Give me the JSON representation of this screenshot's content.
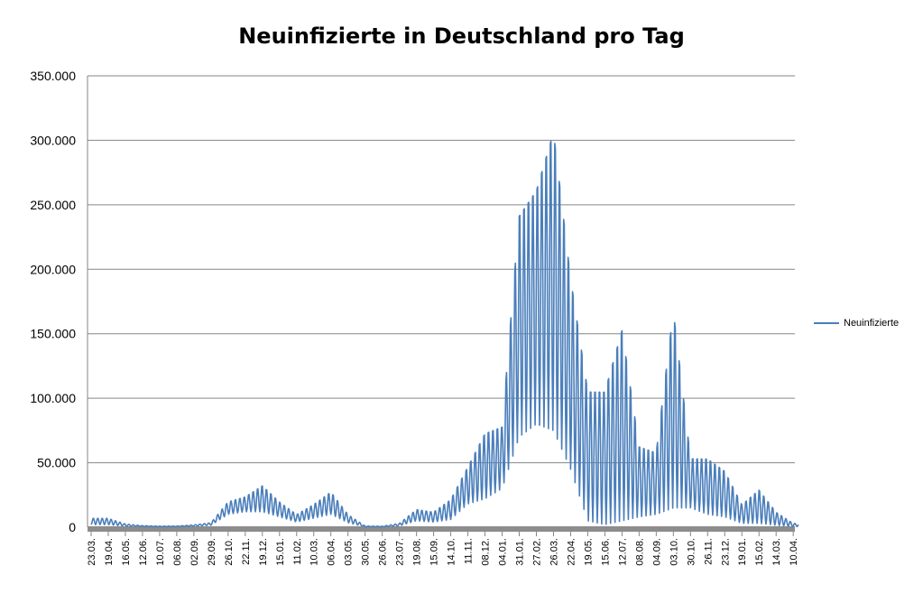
{
  "chart_data": {
    "type": "line",
    "title": "Neuinfizierte in Deutschland pro Tag",
    "xlabel": "",
    "ylabel": "",
    "ylim": [
      0,
      350000
    ],
    "yticks": [
      {
        "value": 0,
        "label": "0"
      },
      {
        "value": 50000,
        "label": "50.000"
      },
      {
        "value": 100000,
        "label": "100.000"
      },
      {
        "value": 150000,
        "label": "150.000"
      },
      {
        "value": 200000,
        "label": "200.000"
      },
      {
        "value": 250000,
        "label": "250.000"
      },
      {
        "value": 300000,
        "label": "300.000"
      },
      {
        "value": 350000,
        "label": "350.000"
      }
    ],
    "xticks": [
      "23.03.",
      "19.04.",
      "16.05.",
      "12.06.",
      "10.07.",
      "06.08.",
      "02.09.",
      "29.09.",
      "26.10.",
      "22.11.",
      "19.12.",
      "15.01.",
      "11.02.",
      "10.03.",
      "06.04.",
      "03.05.",
      "30.05.",
      "26.06.",
      "23.07.",
      "19.08.",
      "15.09.",
      "14.10.",
      "11.11.",
      "08.12.",
      "04.01.",
      "31.01.",
      "27.02.",
      "26.03.",
      "22.04.",
      "19.05.",
      "15.06.",
      "12.07.",
      "08.08.",
      "04.09.",
      "03.10.",
      "30.10.",
      "26.11.",
      "23.12.",
      "19.01.",
      "15.02.",
      "14.03.",
      "10.04."
    ],
    "grid": true,
    "legend_position": "right",
    "series": [
      {
        "name": "Neuinfizierte",
        "color": "#4a7ebb",
        "envelope_high": [
          [
            0,
            7000
          ],
          [
            1,
            7000
          ],
          [
            2,
            2500
          ],
          [
            3,
            1200
          ],
          [
            4,
            800
          ],
          [
            5,
            900
          ],
          [
            6,
            1800
          ],
          [
            7,
            3500
          ],
          [
            8,
            20000
          ],
          [
            9,
            24000
          ],
          [
            10,
            33000
          ],
          [
            11,
            20000
          ],
          [
            12,
            10000
          ],
          [
            13,
            18000
          ],
          [
            14,
            28000
          ],
          [
            15,
            10000
          ],
          [
            16,
            900
          ],
          [
            17,
            700
          ],
          [
            18,
            3000
          ],
          [
            19,
            14000
          ],
          [
            20,
            12000
          ],
          [
            21,
            22000
          ],
          [
            22,
            48000
          ],
          [
            23,
            75000
          ],
          [
            24,
            80000
          ],
          [
            25,
            250000
          ],
          [
            26,
            270000
          ],
          [
            27,
            318000
          ],
          [
            28,
            200000
          ],
          [
            29,
            110000
          ],
          [
            30,
            110000
          ],
          [
            31,
            160000
          ],
          [
            32,
            65000
          ],
          [
            33,
            60000
          ],
          [
            34,
            175000
          ],
          [
            35,
            55000
          ],
          [
            36,
            55000
          ],
          [
            37,
            45000
          ],
          [
            38,
            18000
          ],
          [
            39,
            30000
          ],
          [
            40,
            12000
          ],
          [
            41,
            3000
          ]
        ],
        "envelope_low": [
          [
            0,
            2000
          ],
          [
            1,
            2000
          ],
          [
            2,
            800
          ],
          [
            3,
            500
          ],
          [
            4,
            400
          ],
          [
            5,
            400
          ],
          [
            6,
            800
          ],
          [
            7,
            1500
          ],
          [
            8,
            10000
          ],
          [
            9,
            12000
          ],
          [
            10,
            12000
          ],
          [
            11,
            8000
          ],
          [
            12,
            4000
          ],
          [
            13,
            7000
          ],
          [
            14,
            10000
          ],
          [
            15,
            3500
          ],
          [
            16,
            300
          ],
          [
            17,
            300
          ],
          [
            18,
            1000
          ],
          [
            19,
            5000
          ],
          [
            20,
            4000
          ],
          [
            21,
            6000
          ],
          [
            22,
            18000
          ],
          [
            23,
            22000
          ],
          [
            24,
            30000
          ],
          [
            25,
            70000
          ],
          [
            26,
            80000
          ],
          [
            27,
            75000
          ],
          [
            28,
            45000
          ],
          [
            29,
            5000
          ],
          [
            30,
            2000
          ],
          [
            31,
            5000
          ],
          [
            32,
            8000
          ],
          [
            33,
            10000
          ],
          [
            34,
            15000
          ],
          [
            35,
            15000
          ],
          [
            36,
            10000
          ],
          [
            37,
            8000
          ],
          [
            38,
            3000
          ],
          [
            39,
            3000
          ],
          [
            40,
            1500
          ],
          [
            41,
            500
          ]
        ],
        "samples_per_tick": 27,
        "weekly_period": 7
      }
    ]
  }
}
